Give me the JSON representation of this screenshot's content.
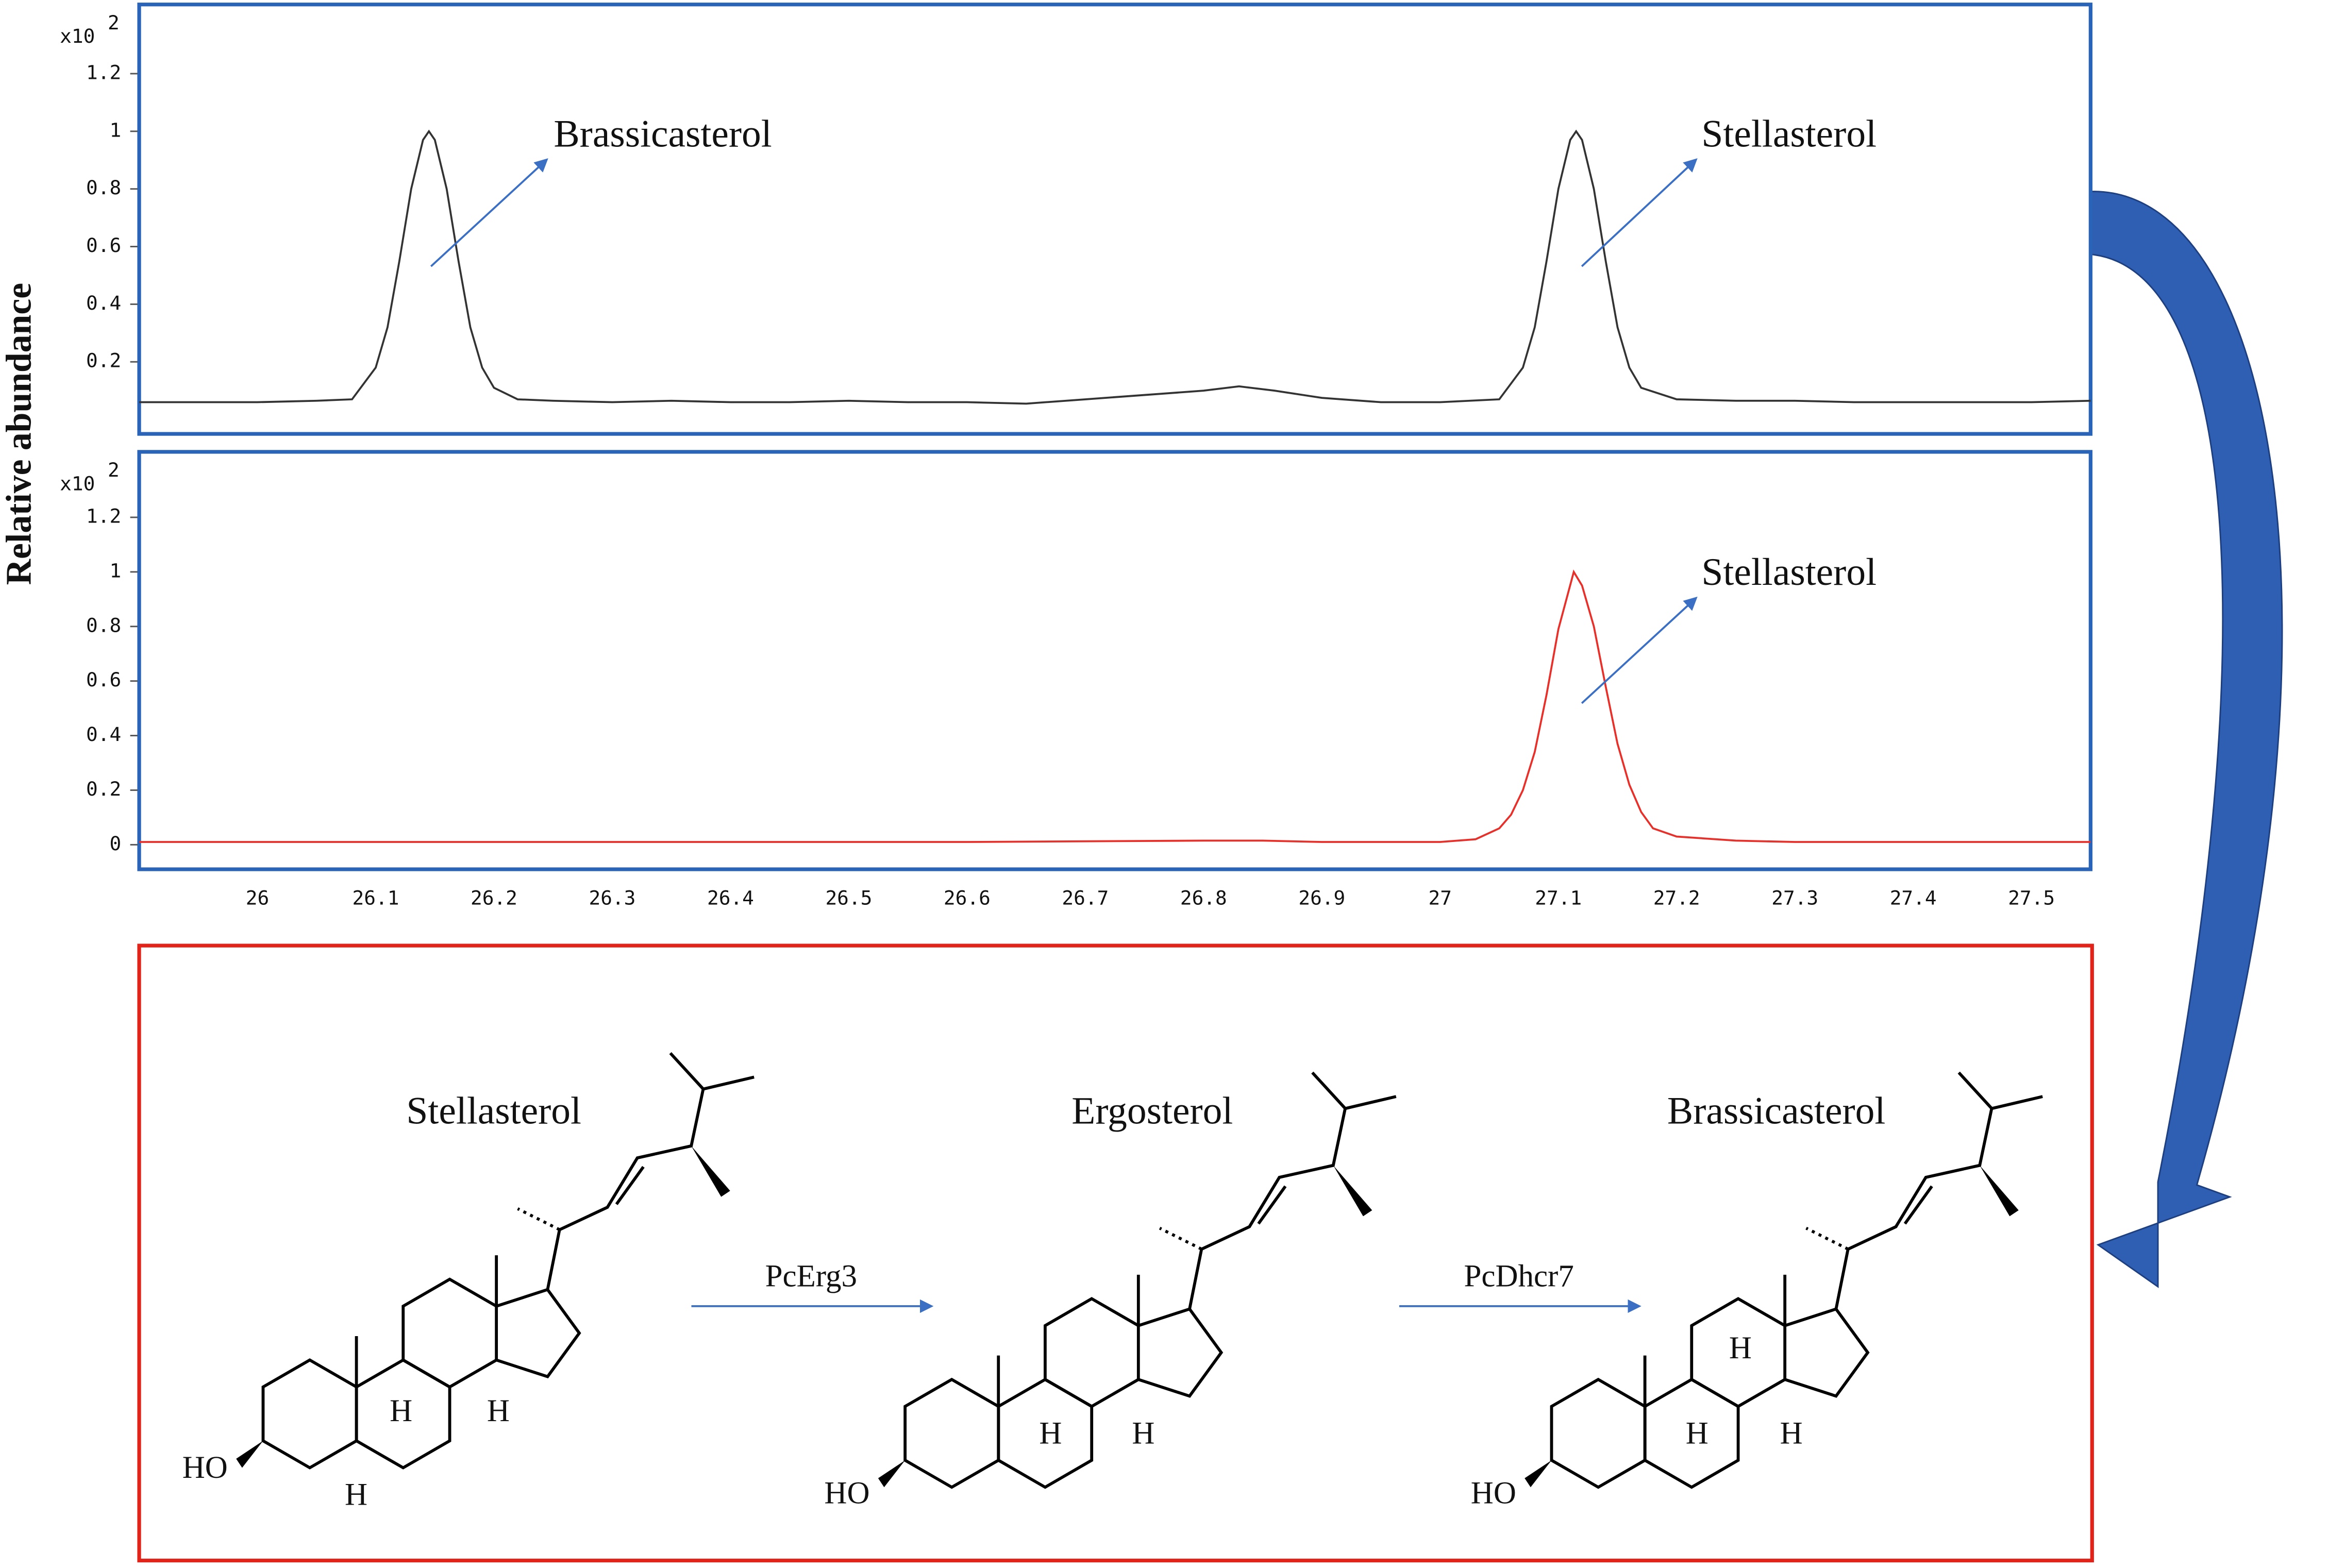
{
  "chart_data": [
    {
      "type": "line",
      "ylabel": "Relative abundance",
      "y_multiplier": "x10",
      "y_multiplier_exponent": "2",
      "color": "#333333",
      "x": [
        25.9,
        25.95,
        26.0,
        26.05,
        26.08,
        26.1,
        26.11,
        26.12,
        26.13,
        26.14,
        26.145,
        26.15,
        26.16,
        26.17,
        26.18,
        26.19,
        26.2,
        26.22,
        26.25,
        26.3,
        26.35,
        26.4,
        26.45,
        26.5,
        26.55,
        26.6,
        26.65,
        26.7,
        26.75,
        26.8,
        26.83,
        26.86,
        26.9,
        26.95,
        27.0,
        27.05,
        27.07,
        27.08,
        27.09,
        27.1,
        27.11,
        27.115,
        27.12,
        27.13,
        27.14,
        27.15,
        27.16,
        27.17,
        27.2,
        27.25,
        27.3,
        27.35,
        27.4,
        27.45,
        27.5,
        27.55
      ],
      "values": [
        0.06,
        0.06,
        0.06,
        0.065,
        0.07,
        0.18,
        0.32,
        0.55,
        0.8,
        0.97,
        1.0,
        0.97,
        0.8,
        0.55,
        0.32,
        0.18,
        0.11,
        0.07,
        0.065,
        0.06,
        0.065,
        0.06,
        0.06,
        0.065,
        0.06,
        0.06,
        0.055,
        0.07,
        0.085,
        0.1,
        0.115,
        0.1,
        0.075,
        0.06,
        0.06,
        0.07,
        0.18,
        0.32,
        0.55,
        0.8,
        0.97,
        1.0,
        0.97,
        0.8,
        0.55,
        0.32,
        0.18,
        0.11,
        0.07,
        0.065,
        0.065,
        0.06,
        0.06,
        0.06,
        0.06,
        0.065
      ],
      "xlim": [
        25.9,
        27.55
      ],
      "ylim": [
        -0.05,
        1.44
      ],
      "yticks": [
        0.2,
        0.4,
        0.6,
        0.8,
        1,
        1.2
      ],
      "annotations": [
        "Brassicasterol",
        "Stellasterol"
      ]
    },
    {
      "type": "line",
      "y_multiplier": "x10",
      "y_multiplier_exponent": "2",
      "color": "#e8302a",
      "x": [
        25.9,
        26.0,
        26.2,
        26.4,
        26.6,
        26.8,
        26.85,
        26.9,
        27.0,
        27.03,
        27.05,
        27.06,
        27.07,
        27.08,
        27.09,
        27.1,
        27.113,
        27.12,
        27.13,
        27.14,
        27.15,
        27.16,
        27.17,
        27.18,
        27.2,
        27.25,
        27.3,
        27.4,
        27.55
      ],
      "values": [
        0.01,
        0.01,
        0.01,
        0.01,
        0.01,
        0.015,
        0.015,
        0.01,
        0.01,
        0.02,
        0.06,
        0.11,
        0.2,
        0.34,
        0.55,
        0.79,
        1.0,
        0.95,
        0.8,
        0.58,
        0.37,
        0.22,
        0.12,
        0.06,
        0.03,
        0.015,
        0.01,
        0.01,
        0.01
      ],
      "xlim": [
        25.9,
        27.55
      ],
      "ylim": [
        -0.09,
        1.44
      ],
      "yticks": [
        0,
        0.2,
        0.4,
        0.6,
        0.8,
        1,
        1.2
      ],
      "xticks": [
        26,
        26.1,
        26.2,
        26.3,
        26.4,
        26.5,
        26.6,
        26.7,
        26.8,
        26.9,
        27,
        27.1,
        27.2,
        27.3,
        27.4,
        27.5
      ],
      "annotations": [
        "Stellasterol"
      ]
    }
  ],
  "scheme": {
    "compounds": [
      {
        "name": "Stellasterol",
        "labels": [
          "HO",
          "H",
          "H",
          "H"
        ]
      },
      {
        "name": "Ergosterol",
        "labels": [
          "HO",
          "H",
          "H"
        ]
      },
      {
        "name": "Brassicasterol",
        "labels": [
          "HO",
          "H",
          "H",
          "H"
        ]
      }
    ],
    "enzymes": [
      "PcErg3",
      "PcDhcr7"
    ]
  }
}
